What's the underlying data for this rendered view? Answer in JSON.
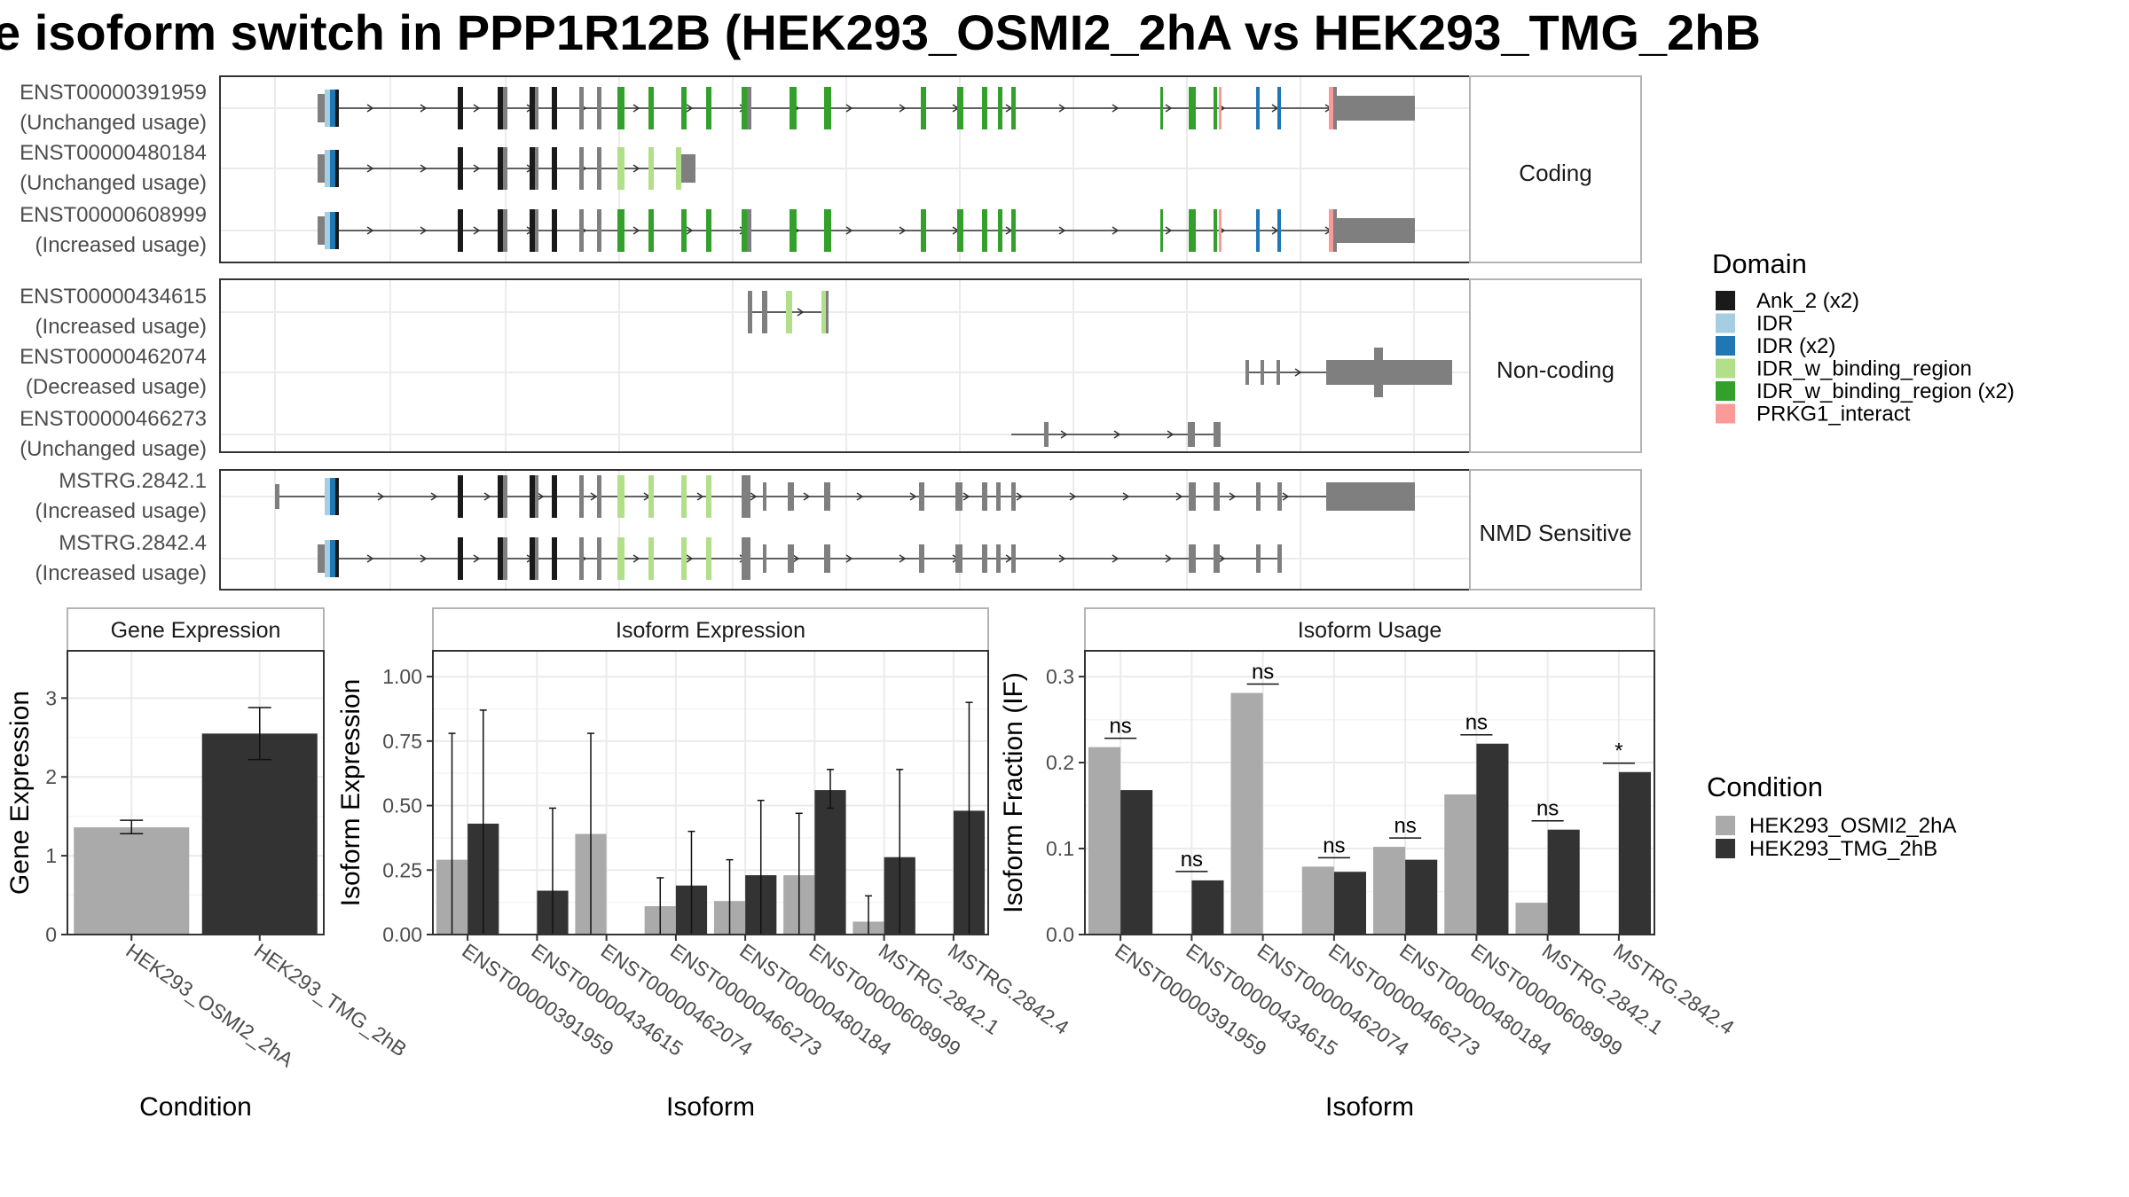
{
  "title": "e isoform switch in PPP1R12B (HEK293_OSMI2_2hA vs HEK293_TMG_2hB",
  "colors": {
    "ank": "#1a1a1a",
    "idr_light": "#a6cee3",
    "idr_dark": "#1f78b4",
    "bind_light": "#b2df8a",
    "bind_dark": "#33a02c",
    "prkg": "#fb9a99",
    "exon_grey": "#7f7f7f",
    "cond_a": "#aaaaaa",
    "cond_b": "#333333",
    "panel_border": "#333333",
    "strip_border": "#b3b3b3",
    "grid": "#ebebeb"
  },
  "structure": {
    "groups": [
      {
        "label": "Coding",
        "rows": [
          {
            "id": "ENST00000391959",
            "usage": "(Unchanged usage)"
          },
          {
            "id": "ENST00000480184",
            "usage": "(Unchanged usage)"
          },
          {
            "id": "ENST00000608999",
            "usage": "(Increased usage)"
          }
        ]
      },
      {
        "label": "Non-coding",
        "rows": [
          {
            "id": "ENST00000434615",
            "usage": "(Increased usage)"
          },
          {
            "id": "ENST00000462074",
            "usage": "(Decreased usage)"
          },
          {
            "id": "ENST00000466273",
            "usage": "(Unchanged usage)"
          }
        ]
      },
      {
        "label": "NMD Sensitive",
        "rows": [
          {
            "id": "MSTRG.2842.1",
            "usage": "(Increased usage)"
          },
          {
            "id": "MSTRG.2842.4",
            "usage": "(Increased usage)"
          }
        ]
      }
    ]
  },
  "legend_domain": {
    "title": "Domain",
    "items": [
      {
        "label": "Ank_2 (x2)",
        "color_key": "ank"
      },
      {
        "label": "IDR",
        "color_key": "idr_light"
      },
      {
        "label": "IDR (x2)",
        "color_key": "idr_dark"
      },
      {
        "label": "IDR_w_binding_region",
        "color_key": "bind_light"
      },
      {
        "label": "IDR_w_binding_region (x2)",
        "color_key": "bind_dark"
      },
      {
        "label": "PRKG1_interact",
        "color_key": "prkg"
      }
    ]
  },
  "legend_condition": {
    "title": "Condition",
    "items": [
      {
        "label": "HEK293_OSMI2_2hA",
        "color_key": "cond_a"
      },
      {
        "label": "HEK293_TMG_2hB",
        "color_key": "cond_b"
      }
    ]
  },
  "chart_data": [
    {
      "type": "bar",
      "title": "Gene Expression",
      "xlabel": "Condition",
      "ylabel": "Gene Expression",
      "ylim": [
        0,
        3.6
      ],
      "yticks": [
        0,
        1,
        2,
        3
      ],
      "ytick_labels": [
        "0",
        "1",
        "2",
        "3"
      ],
      "categories": [
        "HEK293_OSMI2_2hA",
        "HEK293_TMG_2hB"
      ],
      "values": [
        1.36,
        2.55
      ],
      "error_low": [
        1.28,
        2.22
      ],
      "error_high": [
        1.45,
        2.88
      ]
    },
    {
      "type": "bar",
      "title": "Isoform Expression",
      "xlabel": "Isoform",
      "ylabel": "Isoform Expression",
      "ylim": [
        0,
        1.1
      ],
      "yticks": [
        0,
        0.25,
        0.5,
        0.75,
        1.0
      ],
      "ytick_labels": [
        "0.00",
        "0.25",
        "0.50",
        "0.75",
        "1.00"
      ],
      "categories": [
        "ENST00000391959",
        "ENST00000434615",
        "ENST00000462074",
        "ENST00000466273",
        "ENST00000480184",
        "ENST00000608999",
        "MSTRG.2842.1",
        "MSTRG.2842.4"
      ],
      "series": [
        {
          "name": "HEK293_OSMI2_2hA",
          "color_key": "cond_a",
          "values": [
            0.29,
            0.0,
            0.39,
            0.11,
            0.13,
            0.23,
            0.05,
            0.0
          ],
          "error_low": [
            0.0,
            0.0,
            0.0,
            0.0,
            0.0,
            0.0,
            0.0,
            0.0
          ],
          "error_high": [
            0.78,
            0.0,
            0.78,
            0.22,
            0.29,
            0.47,
            0.15,
            0.0
          ]
        },
        {
          "name": "HEK293_TMG_2hB",
          "color_key": "cond_b",
          "values": [
            0.43,
            0.17,
            0.0,
            0.19,
            0.23,
            0.56,
            0.3,
            0.48
          ],
          "error_low": [
            0.0,
            0.0,
            0.0,
            0.0,
            0.0,
            0.49,
            0.0,
            0.0
          ],
          "error_high": [
            0.87,
            0.49,
            0.0,
            0.4,
            0.52,
            0.64,
            0.64,
            0.9
          ]
        }
      ]
    },
    {
      "type": "bar",
      "title": "Isoform Usage",
      "xlabel": "Isoform",
      "ylabel": "Isoform Fraction (IF)",
      "ylim": [
        0,
        0.33
      ],
      "yticks": [
        0,
        0.1,
        0.2,
        0.3
      ],
      "ytick_labels": [
        "0.0",
        "0.1",
        "0.2",
        "0.3"
      ],
      "categories": [
        "ENST00000391959",
        "ENST00000434615",
        "ENST00000462074",
        "ENST00000466273",
        "ENST00000480184",
        "ENST00000608999",
        "MSTRG.2842.1",
        "MSTRG.2842.4"
      ],
      "series": [
        {
          "name": "HEK293_OSMI2_2hA",
          "color_key": "cond_a",
          "values": [
            0.218,
            0.0,
            0.281,
            0.079,
            0.102,
            0.163,
            0.037,
            0.0
          ]
        },
        {
          "name": "HEK293_TMG_2hB",
          "color_key": "cond_b",
          "values": [
            0.168,
            0.063,
            0.0,
            0.073,
            0.087,
            0.222,
            0.122,
            0.189
          ]
        }
      ],
      "significance": [
        "ns",
        "ns",
        "ns",
        "ns",
        "ns",
        "ns",
        "ns",
        "*"
      ]
    }
  ]
}
